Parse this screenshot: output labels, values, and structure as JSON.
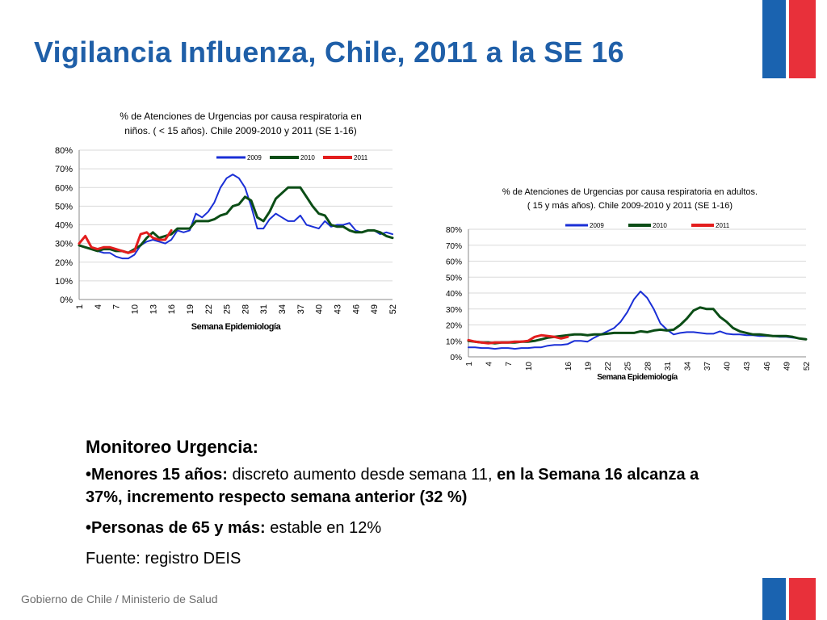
{
  "slide": {
    "title": "Vigilancia Influenza, Chile, 2011 a la SE 16",
    "footer": "Gobierno de Chile / Ministerio de Salud"
  },
  "colors": {
    "title": "#1f5fa8",
    "flag_blue": "#1a63b0",
    "flag_red": "#e8303a",
    "series_2009": "#1a2fd6",
    "series_2010": "#0b4d16",
    "series_2011": "#e31e1e"
  },
  "text_block": {
    "heading": "Monitoreo Urgencia:",
    "bullet1_bold": "•Menores 15 años:",
    "bullet1_text": " discreto aumento desde semana 11, ",
    "bullet1_bold2": "en la Semana 16 alcanza a 37%, incremento  respecto semana anterior (32 %)",
    "bullet2_bold": "•Personas de 65 y más:",
    "bullet2_text": "  estable en 12%",
    "source": "Fuente: registro DEIS"
  },
  "chart_data": [
    {
      "type": "line",
      "title_line1": "% de Atenciones de Urgencias por causa respiratoria en",
      "title_line2": "niños. ( < 15 años). Chile 2009-2010  y 2011 (SE 1-16)",
      "xlabel": "Semana Epidemiología",
      "ylabel": "",
      "ylim": [
        0,
        80
      ],
      "y_ticks": [
        "0%",
        "10%",
        "20%",
        "30%",
        "40%",
        "50%",
        "60%",
        "70%",
        "80%"
      ],
      "x_tick_labels": [
        "1",
        "4",
        "7",
        "10",
        "13",
        "16",
        "19",
        "22",
        "25",
        "28",
        "31",
        "34",
        "37",
        "40",
        "43",
        "46",
        "49",
        "52"
      ],
      "x_tick_weeks": [
        1,
        4,
        7,
        10,
        13,
        16,
        19,
        22,
        25,
        28,
        31,
        34,
        37,
        40,
        43,
        46,
        49,
        52
      ],
      "x_range": [
        1,
        52
      ],
      "legend_position": "top-right",
      "grid": true,
      "series": [
        {
          "name": "2009",
          "color": "#1a2fd6",
          "width": 2,
          "values": [
            29,
            28,
            27,
            26,
            25,
            25,
            23,
            22,
            22,
            24,
            29,
            31,
            32,
            31,
            30,
            32,
            37,
            36,
            37,
            46,
            44,
            47,
            52,
            60,
            65,
            67,
            65,
            60,
            50,
            38,
            38,
            43,
            46,
            44,
            42,
            42,
            45,
            40,
            39,
            38,
            42,
            39,
            40,
            40,
            41,
            37,
            36,
            37,
            37,
            35,
            36,
            35
          ]
        },
        {
          "name": "2010",
          "color": "#0b4d16",
          "width": 3,
          "values": [
            29,
            28,
            27,
            26,
            27,
            27,
            26,
            26,
            25,
            27,
            29,
            33,
            36,
            33,
            34,
            35,
            38,
            38,
            38,
            42,
            42,
            42,
            43,
            45,
            46,
            50,
            51,
            55,
            53,
            44,
            42,
            47,
            54,
            57,
            60,
            60,
            60,
            55,
            50,
            46,
            45,
            40,
            39,
            39,
            37,
            36,
            36,
            37,
            37,
            36,
            34,
            33
          ]
        },
        {
          "name": "2011",
          "color": "#e31e1e",
          "width": 3,
          "values": [
            30,
            34,
            28,
            27,
            28,
            28,
            27,
            26,
            25,
            26,
            35,
            36,
            33,
            32,
            32,
            37
          ]
        }
      ]
    },
    {
      "type": "line",
      "title_line1": "% de Atenciones de Urgencias por causa respiratoria en adultos.",
      "title_line2": "( 15 y más años). Chile 2009-2010  y 2011 (SE 1-16)",
      "xlabel": "Semana Epidemiología",
      "ylabel": "",
      "ylim": [
        0,
        80
      ],
      "y_ticks": [
        "0%",
        "10%",
        "20%",
        "30%",
        "40%",
        "50%",
        "60%",
        "70%",
        "80%"
      ],
      "x_tick_labels": [
        "1",
        "4",
        "7",
        "10",
        "16",
        "19",
        "22",
        "25",
        "28",
        "31",
        "34",
        "37",
        "40",
        "43",
        "46",
        "49",
        "52"
      ],
      "x_tick_weeks": [
        1,
        4,
        7,
        10,
        16,
        19,
        22,
        25,
        28,
        31,
        34,
        37,
        40,
        43,
        46,
        49,
        52
      ],
      "x_range": [
        1,
        52
      ],
      "legend_position": "top-right",
      "grid": true,
      "series": [
        {
          "name": "2009",
          "color": "#1a2fd6",
          "width": 2,
          "values": [
            6,
            6,
            5.5,
            5.5,
            5,
            5.5,
            5.5,
            5,
            5.5,
            5.5,
            6,
            6,
            7,
            7.5,
            7.5,
            8,
            10,
            10,
            9.5,
            12,
            14,
            16,
            18,
            22,
            28,
            36,
            41,
            37,
            30,
            21,
            17,
            14,
            15,
            15.5,
            15.5,
            15,
            14.5,
            14.5,
            16,
            14.5,
            14,
            14,
            13.5,
            13.5,
            13,
            13,
            13,
            12.5,
            12.5,
            12,
            11.5,
            11
          ]
        },
        {
          "name": "2010",
          "color": "#0b4d16",
          "width": 3,
          "values": [
            10,
            9.5,
            9,
            9,
            8.5,
            9,
            9,
            9,
            9.5,
            9.5,
            10,
            11,
            12,
            12.5,
            13,
            13.5,
            14,
            14,
            13.5,
            14,
            14,
            14.5,
            15,
            15,
            15,
            15,
            16,
            15.5,
            16.5,
            17,
            16.5,
            17,
            20,
            24,
            29,
            31,
            30,
            30,
            25,
            22,
            18,
            16,
            15,
            14,
            14,
            13.5,
            13,
            13,
            13,
            12.5,
            11.5,
            11
          ]
        },
        {
          "name": "2011",
          "color": "#e31e1e",
          "width": 3,
          "values": [
            10.5,
            9.5,
            9,
            8.5,
            9,
            9,
            9,
            9.5,
            9.5,
            10,
            12.5,
            13.5,
            13,
            12.5,
            11.5,
            12.5
          ]
        }
      ]
    }
  ]
}
